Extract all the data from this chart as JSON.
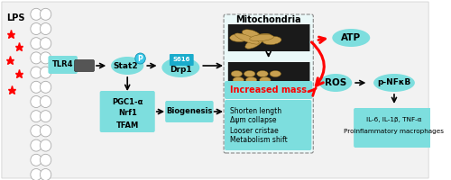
{
  "lcyan": "#7DDEDE",
  "dcyan": "#20B2AA",
  "red": "#FF0000",
  "black": "#000000",
  "white": "#FFFFFF",
  "gray_bg": "#F0F0F0",
  "dark_gray": "#555555",
  "mito_brown1": "#C8A050",
  "mito_dark1": "#7B5A10",
  "mito_bg_top": "#2A2A2A",
  "mito_bg_bot": "#3A3A3A",
  "box1_lines": [
    "PGC1-α",
    "Nrf1",
    "TFAM"
  ],
  "box2_text": "Biogenesis",
  "box3_text": "Increased mass",
  "box4_lines": [
    "Shorten length",
    "Δψm collapse",
    "Looser cristae",
    "Metabolism shift"
  ],
  "box5_text": "ATP",
  "box6_text": "ROS",
  "box7_text": "p-NFκB",
  "box8_line1": "IL-6, IL-1β, TNF-α",
  "box8_line2": "Proinflammatory macrophages",
  "tlr4_text": "TLR4",
  "stat2_text": "Stat2",
  "p_text": "P",
  "s616_text": "S616",
  "drp1_text": "Drp1",
  "lps_text": "LPS",
  "mito_title": "Mitochondria"
}
